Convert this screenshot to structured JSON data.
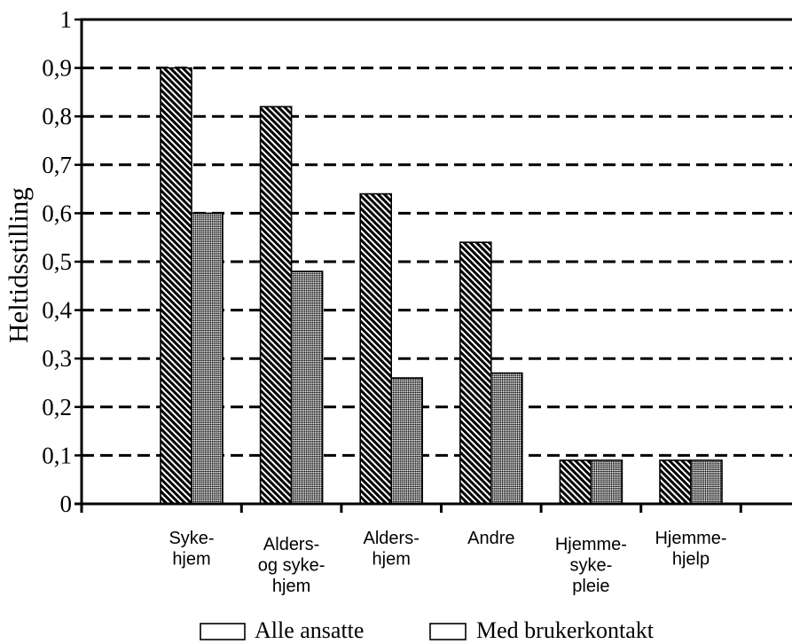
{
  "chart_data": {
    "type": "bar",
    "categories": [
      [
        "Syke-",
        "hjem"
      ],
      [
        "Alders-",
        "og syke-",
        "hjem"
      ],
      [
        "Alders-",
        "hjem"
      ],
      [
        "Andre"
      ],
      [
        "Hjemme-",
        "syke-",
        "pleie"
      ],
      [
        "Hjemme-",
        "hjelp"
      ]
    ],
    "series": [
      {
        "name": "Alle ansatte",
        "values": [
          0.9,
          0.82,
          0.64,
          0.54,
          0.09,
          0.09
        ],
        "pattern": "diagonal-hatch"
      },
      {
        "name": "Med brukerkontakt",
        "values": [
          0.6,
          0.48,
          0.26,
          0.27,
          0.09,
          0.09
        ],
        "pattern": "crosshatch"
      }
    ],
    "ylabel": "Heltidsstilling",
    "ylim": [
      0,
      1
    ],
    "y_ticks": [
      0,
      0.1,
      0.2,
      0.3,
      0.4,
      0.5,
      0.6,
      0.7,
      0.8,
      0.9,
      1
    ],
    "y_tick_labels": [
      "0",
      "0,1",
      "0,2",
      "0,3",
      "0,4",
      "0,5",
      "0,6",
      "0,7",
      "0,8",
      "0,9",
      "1"
    ],
    "grid": {
      "y": true,
      "x": false,
      "dashed": true
    },
    "legend": "bottom-center",
    "colors": {
      "ink": "#000000",
      "paper": "#ffffff"
    }
  }
}
